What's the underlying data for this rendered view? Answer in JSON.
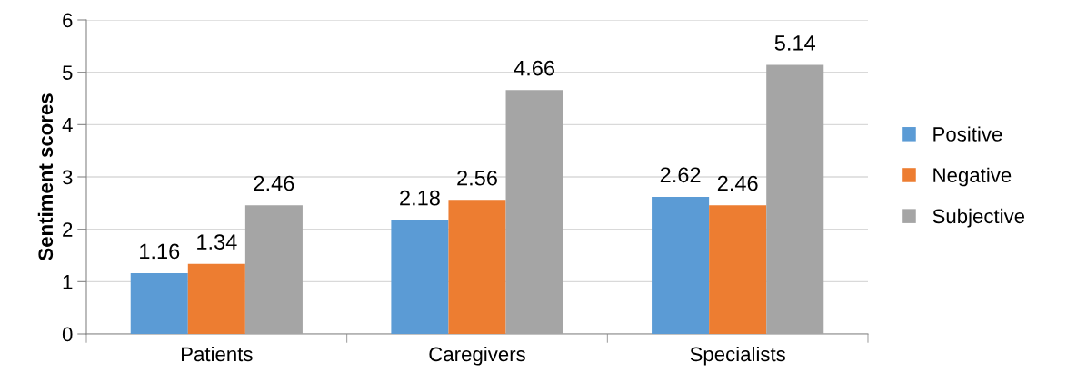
{
  "chart_data": {
    "type": "bar",
    "ylabel": "Sentiment scores",
    "categories": [
      "Patients",
      "Caregivers",
      "Specialists"
    ],
    "series": [
      {
        "name": "Positive",
        "color": "#5b9bd5",
        "values": [
          1.16,
          2.18,
          2.62
        ]
      },
      {
        "name": "Negative",
        "color": "#ed7d31",
        "values": [
          1.34,
          2.56,
          2.46
        ]
      },
      {
        "name": "Subjective",
        "color": "#a5a5a5",
        "values": [
          2.46,
          4.66,
          5.14
        ]
      }
    ],
    "ylim": [
      0,
      6
    ],
    "yticks": [
      0,
      1,
      2,
      3,
      4,
      5,
      6
    ],
    "grid": "y",
    "legend": "right",
    "data_labels": true
  }
}
